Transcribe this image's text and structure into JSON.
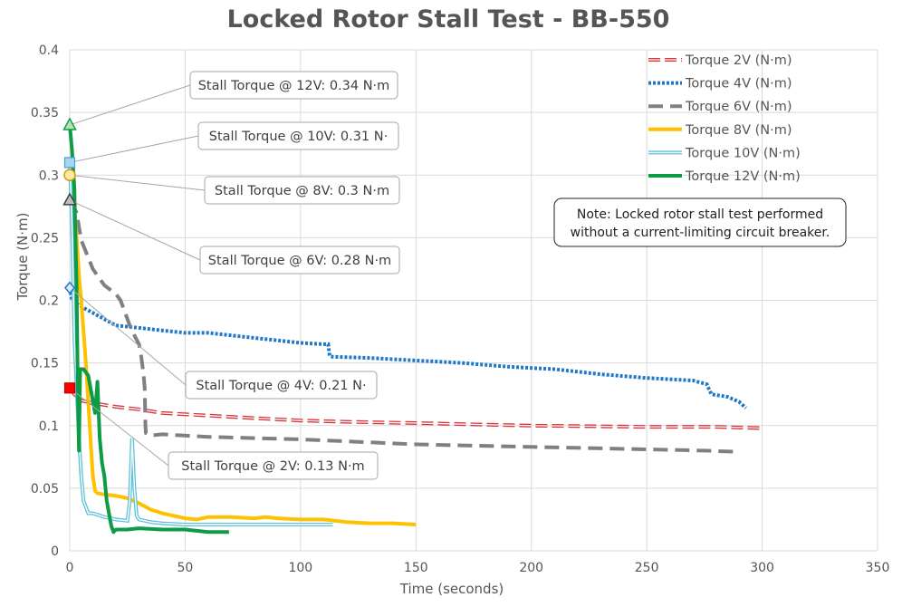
{
  "chart_data": {
    "type": "line",
    "title": "Locked Rotor Stall Test - BB-550",
    "xlabel": "Time (seconds)",
    "ylabel": "Torque (N·m)",
    "xlim": [
      0,
      350
    ],
    "ylim": [
      0,
      0.4
    ],
    "xticks": [
      "0",
      "50",
      "100",
      "150",
      "200",
      "250",
      "300",
      "350"
    ],
    "yticks": [
      "0",
      "0.05",
      "0.1",
      "0.15",
      "0.2",
      "0.25",
      "0.3",
      "0.35",
      "0.4"
    ],
    "grid": true,
    "legend_position": "top-right",
    "series": [
      {
        "name": "Torque 2V (N·m)",
        "color": "#d9363e",
        "style": "double-dash",
        "points": [
          [
            0,
            0.13
          ],
          [
            2,
            0.125
          ],
          [
            5,
            0.12
          ],
          [
            10,
            0.118
          ],
          [
            20,
            0.115
          ],
          [
            30,
            0.113
          ],
          [
            40,
            0.11
          ],
          [
            60,
            0.108
          ],
          [
            80,
            0.106
          ],
          [
            100,
            0.104
          ],
          [
            120,
            0.103
          ],
          [
            150,
            0.102
          ],
          [
            200,
            0.1
          ],
          [
            250,
            0.099
          ],
          [
            280,
            0.099
          ],
          [
            299,
            0.098
          ]
        ]
      },
      {
        "name": "Torque 4V (N·m)",
        "color": "#1f78c8",
        "style": "dotted",
        "points": [
          [
            0,
            0.21
          ],
          [
            1,
            0.2
          ],
          [
            5,
            0.195
          ],
          [
            10,
            0.19
          ],
          [
            20,
            0.18
          ],
          [
            30,
            0.178
          ],
          [
            40,
            0.176
          ],
          [
            50,
            0.174
          ],
          [
            60,
            0.174
          ],
          [
            70,
            0.172
          ],
          [
            80,
            0.17
          ],
          [
            90,
            0.168
          ],
          [
            100,
            0.166
          ],
          [
            110,
            0.165
          ],
          [
            112,
            0.165
          ],
          [
            112.5,
            0.157
          ],
          [
            113,
            0.155
          ],
          [
            130,
            0.154
          ],
          [
            150,
            0.152
          ],
          [
            170,
            0.15
          ],
          [
            190,
            0.147
          ],
          [
            210,
            0.145
          ],
          [
            230,
            0.141
          ],
          [
            250,
            0.138
          ],
          [
            270,
            0.136
          ],
          [
            276,
            0.133
          ],
          [
            278,
            0.125
          ],
          [
            285,
            0.123
          ],
          [
            290,
            0.119
          ],
          [
            293,
            0.114
          ]
        ]
      },
      {
        "name": "Torque 6V (N·m)",
        "color": "#808080",
        "style": "dashed",
        "points": [
          [
            0,
            0.28
          ],
          [
            3,
            0.27
          ],
          [
            5,
            0.248
          ],
          [
            10,
            0.225
          ],
          [
            15,
            0.212
          ],
          [
            20,
            0.205
          ],
          [
            22,
            0.2
          ],
          [
            26,
            0.18
          ],
          [
            28,
            0.172
          ],
          [
            30,
            0.165
          ],
          [
            31,
            0.155
          ],
          [
            32,
            0.14
          ],
          [
            32.5,
            0.13
          ],
          [
            32.8,
            0.1
          ],
          [
            33,
            0.094
          ],
          [
            35,
            0.092
          ],
          [
            40,
            0.093
          ],
          [
            50,
            0.092
          ],
          [
            60,
            0.091
          ],
          [
            80,
            0.09
          ],
          [
            100,
            0.089
          ],
          [
            125,
            0.087
          ],
          [
            150,
            0.085
          ],
          [
            175,
            0.084
          ],
          [
            200,
            0.083
          ],
          [
            225,
            0.082
          ],
          [
            250,
            0.081
          ],
          [
            275,
            0.08
          ],
          [
            290,
            0.079
          ]
        ]
      },
      {
        "name": "Torque 8V (N·m)",
        "color": "#ffc000",
        "style": "solid",
        "points": [
          [
            0,
            0.3
          ],
          [
            1,
            0.29
          ],
          [
            2,
            0.27
          ],
          [
            3,
            0.25
          ],
          [
            4,
            0.22
          ],
          [
            5,
            0.2
          ],
          [
            6,
            0.175
          ],
          [
            7,
            0.15
          ],
          [
            8,
            0.12
          ],
          [
            9,
            0.09
          ],
          [
            10,
            0.06
          ],
          [
            11,
            0.048
          ],
          [
            12,
            0.046
          ],
          [
            15,
            0.045
          ],
          [
            20,
            0.044
          ],
          [
            25,
            0.042
          ],
          [
            30,
            0.038
          ],
          [
            35,
            0.033
          ],
          [
            40,
            0.03
          ],
          [
            45,
            0.028
          ],
          [
            50,
            0.026
          ],
          [
            55,
            0.025
          ],
          [
            60,
            0.027
          ],
          [
            70,
            0.027
          ],
          [
            80,
            0.026
          ],
          [
            85,
            0.027
          ],
          [
            90,
            0.026
          ],
          [
            100,
            0.025
          ],
          [
            110,
            0.025
          ],
          [
            120,
            0.023
          ],
          [
            130,
            0.022
          ],
          [
            140,
            0.022
          ],
          [
            150,
            0.021
          ]
        ]
      },
      {
        "name": "Torque 10V (N·m)",
        "color": "#5bc2d8",
        "style": "double",
        "points": [
          [
            0,
            0.31
          ],
          [
            1,
            0.26
          ],
          [
            2,
            0.17
          ],
          [
            3,
            0.13
          ],
          [
            4,
            0.09
          ],
          [
            5,
            0.06
          ],
          [
            6,
            0.04
          ],
          [
            8,
            0.03
          ],
          [
            10,
            0.03
          ],
          [
            15,
            0.027
          ],
          [
            20,
            0.025
          ],
          [
            25,
            0.024
          ],
          [
            26,
            0.04
          ],
          [
            27,
            0.09
          ],
          [
            28,
            0.05
          ],
          [
            29,
            0.028
          ],
          [
            30,
            0.025
          ],
          [
            35,
            0.023
          ],
          [
            40,
            0.022
          ],
          [
            50,
            0.021
          ],
          [
            60,
            0.021
          ],
          [
            70,
            0.021
          ],
          [
            80,
            0.021
          ],
          [
            90,
            0.021
          ],
          [
            100,
            0.021
          ],
          [
            114,
            0.021
          ]
        ]
      },
      {
        "name": "Torque 12V (N·m)",
        "color": "#0e9b45",
        "style": "solid",
        "points": [
          [
            0,
            0.34
          ],
          [
            1,
            0.32
          ],
          [
            2,
            0.29
          ],
          [
            3,
            0.21
          ],
          [
            3.5,
            0.13
          ],
          [
            4,
            0.08
          ],
          [
            4.5,
            0.145
          ],
          [
            6,
            0.145
          ],
          [
            8,
            0.14
          ],
          [
            10,
            0.12
          ],
          [
            11,
            0.11
          ],
          [
            12,
            0.135
          ],
          [
            13,
            0.09
          ],
          [
            14,
            0.07
          ],
          [
            15,
            0.06
          ],
          [
            16,
            0.04
          ],
          [
            17,
            0.03
          ],
          [
            18,
            0.02
          ],
          [
            19,
            0.015
          ],
          [
            20,
            0.017
          ],
          [
            25,
            0.017
          ],
          [
            30,
            0.018
          ],
          [
            40,
            0.017
          ],
          [
            50,
            0.017
          ],
          [
            60,
            0.015
          ],
          [
            69,
            0.015
          ]
        ]
      }
    ],
    "annotations": [
      {
        "series": 5,
        "marker": "triangle",
        "x": 0,
        "y": 0.34,
        "text": "Stall Torque @ 12V: 0.34 N·m"
      },
      {
        "series": 4,
        "marker": "square",
        "x": 0,
        "y": 0.31,
        "text": "Stall Torque @ 10V: 0.31 N·"
      },
      {
        "series": 3,
        "marker": "circle",
        "x": 0,
        "y": 0.3,
        "text": "Stall Torque @ 8V: 0.3 N·m"
      },
      {
        "series": 2,
        "marker": "triangle",
        "x": 0,
        "y": 0.28,
        "text": "Stall Torque @ 6V: 0.28 N·m"
      },
      {
        "series": 1,
        "marker": "diamond",
        "x": 0,
        "y": 0.21,
        "text": "Stall Torque @ 4V: 0.21 N·"
      },
      {
        "series": 0,
        "marker": "square",
        "x": 0,
        "y": 0.13,
        "text": "Stall Torque @ 2V: 0.13 N·m"
      }
    ],
    "note": "Note: Locked rotor stall test performed without a current-limiting circuit breaker."
  }
}
